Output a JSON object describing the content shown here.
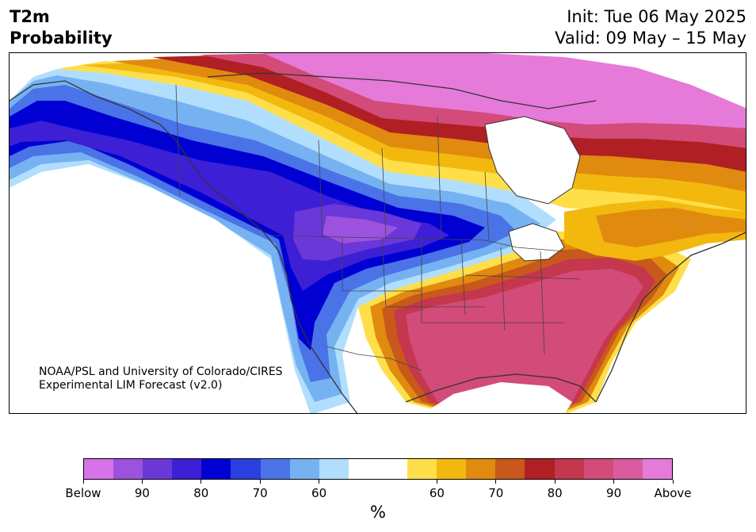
{
  "header": {
    "variable": "T2m",
    "product": "Probability",
    "init": "Init: Tue 06 May 2025",
    "valid": "Valid: 09 May – 15 May"
  },
  "credit": {
    "line1": "NOAA/PSL and University of Colorado/CIRES",
    "line2": "Experimental LIM Forecast (v2.0)"
  },
  "colorbar": {
    "unit": "%",
    "segments": [
      "#d673e8",
      "#9c52de",
      "#6a38d8",
      "#3d1fd6",
      "#0000d2",
      "#2940de",
      "#4a73e8",
      "#76b2f2",
      "#b1defc",
      "#ffffff",
      "#fedf4a",
      "#f3b80e",
      "#e08a0f",
      "#c9581b",
      "#b01f23",
      "#c4374d",
      "#d34b78",
      "#db5aa0",
      "#e57ad8"
    ],
    "labels": [
      "Below",
      "90",
      "80",
      "70",
      "60",
      "60",
      "70",
      "80",
      "90",
      "Above"
    ]
  },
  "map": {
    "region": "North America",
    "colors": {
      "land_default": "#ffffff",
      "coast": "#333333",
      "border": "#444444"
    }
  }
}
